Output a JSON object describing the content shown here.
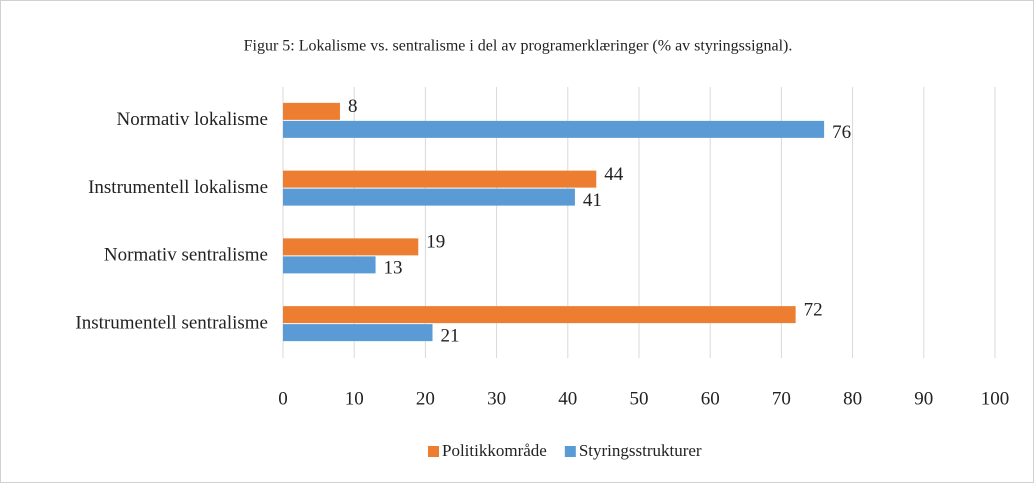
{
  "chart_data": {
    "type": "barh",
    "title": "Figur 5: Lokalisme vs. sentralisme i del av programerklæringer (% av styringssignal).",
    "categories": [
      "Normativ lokalisme",
      "Instrumentell lokalisme",
      "Normativ sentralisme",
      "Instrumentell sentralisme"
    ],
    "series": [
      {
        "name": "Politikkområde",
        "color": "#ed7d31",
        "values": [
          8,
          44,
          19,
          72
        ]
      },
      {
        "name": "Styringsstrukturer",
        "color": "#5b9bd5",
        "values": [
          76,
          41,
          13,
          21
        ]
      }
    ],
    "xlim": [
      0,
      100
    ],
    "xticks": [
      0,
      10,
      20,
      30,
      40,
      50,
      60,
      70,
      80,
      90,
      100
    ],
    "grid": true,
    "legend": "bottom"
  }
}
